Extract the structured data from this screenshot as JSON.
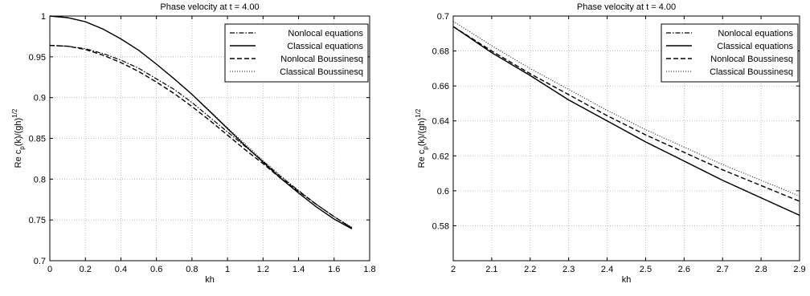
{
  "chart_data": [
    {
      "type": "line",
      "title": "Phase velocity at t = 4.00",
      "xlabel": "kh",
      "ylabel_prefix": "Re c",
      "ylabel_sub": "p",
      "ylabel_mid": "(k)/(gh)",
      "ylabel_sup": "1/2",
      "xlim": [
        0,
        1.8
      ],
      "ylim": [
        0.7,
        1.0
      ],
      "xticks": [
        0,
        0.2,
        0.4,
        0.6,
        0.8,
        1,
        1.2,
        1.4,
        1.6,
        1.8
      ],
      "xtick_labels": [
        "0",
        "0.2",
        "0.4",
        "0.6",
        "0.8",
        "1",
        "1.2",
        "1.4",
        "1.6",
        "1.8"
      ],
      "yticks": [
        0.7,
        0.75,
        0.8,
        0.85,
        0.9,
        0.95,
        1
      ],
      "ytick_labels": [
        "0.7",
        "0.75",
        "0.8",
        "0.85",
        "0.9",
        "0.95",
        "1"
      ],
      "grid": true,
      "legend_position": "top-right",
      "series": [
        {
          "name": "Nonlocal equations",
          "style": "dashdot",
          "x": [
            0,
            0.1,
            0.2,
            0.3,
            0.4,
            0.5,
            0.6,
            0.7,
            0.8,
            0.9,
            1.0,
            1.1,
            1.2,
            1.3,
            1.4,
            1.5,
            1.6,
            1.7
          ],
          "y": [
            0.964,
            0.963,
            0.96,
            0.954,
            0.946,
            0.936,
            0.923,
            0.91,
            0.894,
            0.876,
            0.858,
            0.84,
            0.822,
            0.803,
            0.786,
            0.769,
            0.754,
            0.74
          ]
        },
        {
          "name": "Classical equations",
          "style": "solid",
          "x": [
            0,
            0.1,
            0.2,
            0.3,
            0.4,
            0.5,
            0.6,
            0.7,
            0.8,
            0.9,
            1.0,
            1.1,
            1.2,
            1.3,
            1.4,
            1.5,
            1.6,
            1.7
          ],
          "y": [
            1.0,
            0.998,
            0.993,
            0.984,
            0.972,
            0.958,
            0.941,
            0.923,
            0.904,
            0.883,
            0.862,
            0.841,
            0.821,
            0.801,
            0.783,
            0.766,
            0.751,
            0.739
          ]
        },
        {
          "name": "Nonlocal Boussinesq",
          "style": "dashed",
          "x": [
            0,
            0.1,
            0.2,
            0.3,
            0.4,
            0.5,
            0.6,
            0.7,
            0.8,
            0.9,
            1.0,
            1.1,
            1.2,
            1.3,
            1.4,
            1.5,
            1.6,
            1.7
          ],
          "y": [
            0.964,
            0.963,
            0.959,
            0.952,
            0.943,
            0.932,
            0.919,
            0.905,
            0.889,
            0.872,
            0.854,
            0.836,
            0.819,
            0.801,
            0.785,
            0.769,
            0.754,
            0.74
          ]
        },
        {
          "name": "Classical Boussinesq",
          "style": "dotted",
          "x": [
            0,
            0.1,
            0.2,
            0.3,
            0.4,
            0.5,
            0.6,
            0.7,
            0.8,
            0.9,
            1.0,
            1.1,
            1.2,
            1.3,
            1.4,
            1.5,
            1.6,
            1.7
          ],
          "y": [
            1.0,
            0.998,
            0.993,
            0.984,
            0.972,
            0.958,
            0.941,
            0.923,
            0.904,
            0.884,
            0.863,
            0.843,
            0.823,
            0.804,
            0.786,
            0.769,
            0.754,
            0.741
          ]
        }
      ]
    },
    {
      "type": "line",
      "title": "Phase velocity at t = 4.00",
      "xlabel": "kh",
      "ylabel_prefix": "Re c",
      "ylabel_sub": "p",
      "ylabel_mid": "(k)/(gh)",
      "ylabel_sup": "1/2",
      "xlim": [
        2,
        2.9
      ],
      "ylim": [
        0.56,
        0.7
      ],
      "xticks": [
        2,
        2.1,
        2.2,
        2.3,
        2.4,
        2.5,
        2.6,
        2.7,
        2.8,
        2.9
      ],
      "xtick_labels": [
        "2",
        "2.1",
        "2.2",
        "2.3",
        "2.4",
        "2.5",
        "2.6",
        "2.7",
        "2.8",
        "2.9"
      ],
      "yticks": [
        0.58,
        0.6,
        0.62,
        0.64,
        0.66,
        0.68,
        0.7
      ],
      "ytick_labels": [
        "0.58",
        "0.6",
        "0.62",
        "0.64",
        "0.66",
        "0.68",
        "0.7"
      ],
      "grid": true,
      "legend_position": "top-right",
      "series": [
        {
          "name": "Nonlocal equations",
          "style": "dashdot",
          "x": [
            2.0,
            2.1,
            2.2,
            2.3,
            2.4,
            2.5,
            2.6,
            2.7,
            2.8,
            2.9
          ],
          "y": [
            0.694,
            0.679,
            0.666,
            0.652,
            0.64,
            0.628,
            0.617,
            0.606,
            0.596,
            0.586
          ]
        },
        {
          "name": "Classical equations",
          "style": "solid",
          "x": [
            2.0,
            2.1,
            2.2,
            2.3,
            2.4,
            2.5,
            2.6,
            2.7,
            2.8,
            2.9
          ],
          "y": [
            0.694,
            0.679,
            0.666,
            0.652,
            0.64,
            0.628,
            0.617,
            0.606,
            0.596,
            0.586
          ]
        },
        {
          "name": "Nonlocal Boussinesq",
          "style": "dashed",
          "x": [
            2.0,
            2.1,
            2.2,
            2.3,
            2.4,
            2.5,
            2.6,
            2.7,
            2.8,
            2.9
          ],
          "y": [
            0.694,
            0.68,
            0.667,
            0.655,
            0.643,
            0.632,
            0.622,
            0.612,
            0.603,
            0.594
          ]
        },
        {
          "name": "Classical Boussinesq",
          "style": "dotted",
          "x": [
            2.0,
            2.1,
            2.2,
            2.3,
            2.4,
            2.5,
            2.6,
            2.7,
            2.8,
            2.9
          ],
          "y": [
            0.697,
            0.683,
            0.67,
            0.658,
            0.646,
            0.635,
            0.625,
            0.615,
            0.606,
            0.597
          ]
        }
      ]
    }
  ]
}
